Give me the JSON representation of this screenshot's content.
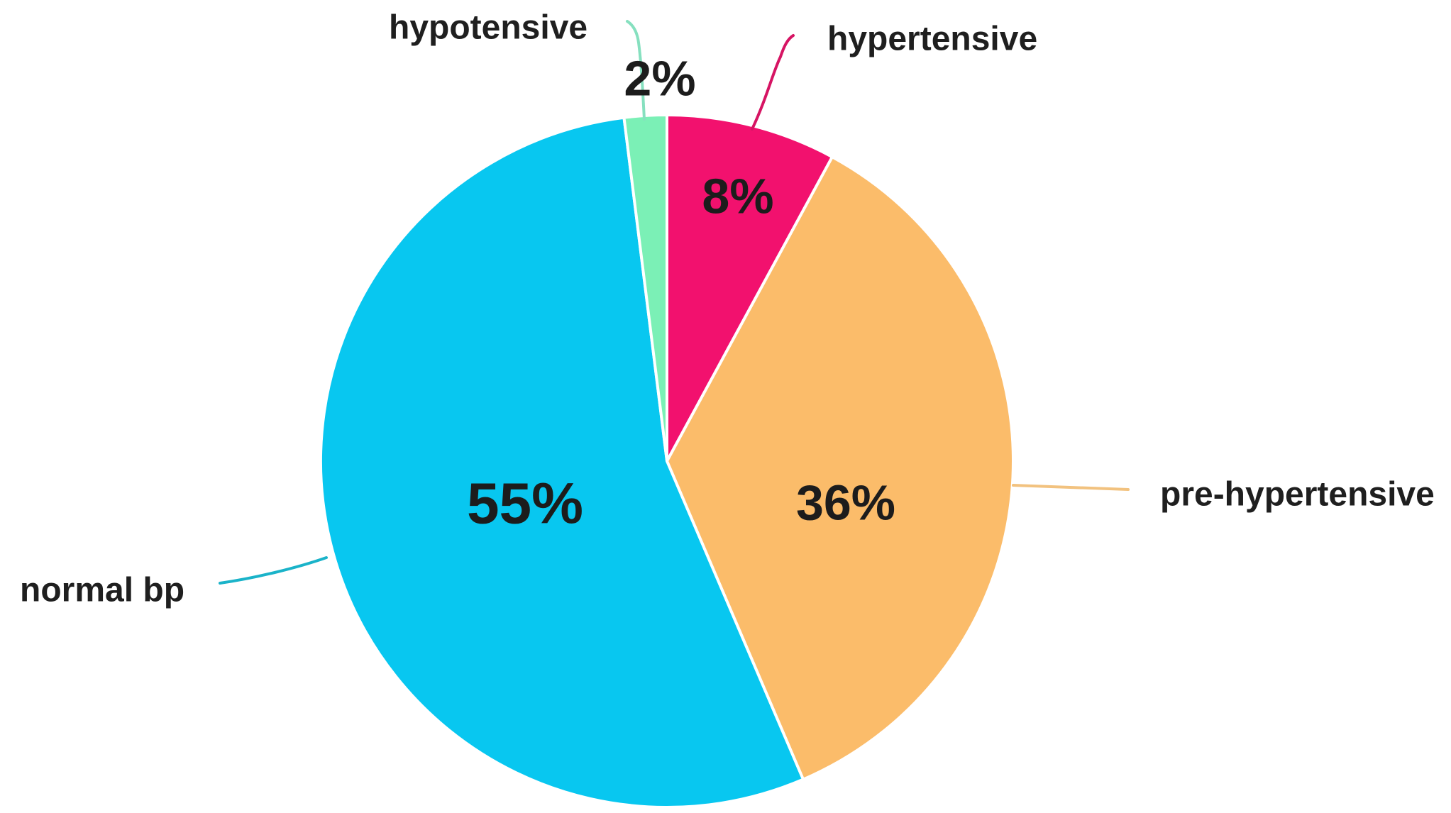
{
  "chart_data": {
    "type": "pie",
    "title": "",
    "categories": [
      "hypertensive",
      "pre-hypertensive",
      "normal bp",
      "hypotensive"
    ],
    "values": [
      8,
      36,
      55,
      2
    ],
    "value_labels": [
      "8%",
      "36%",
      "55%",
      "2%"
    ],
    "colors": [
      "#F2116E",
      "#FBBC6A",
      "#08C7F0",
      "#7BF0B6"
    ],
    "leader_colors": [
      "#D61463",
      "#F2C27F",
      "#1AB3C9",
      "#86E0BF"
    ],
    "legend": "none",
    "start": "top, clockwise"
  }
}
